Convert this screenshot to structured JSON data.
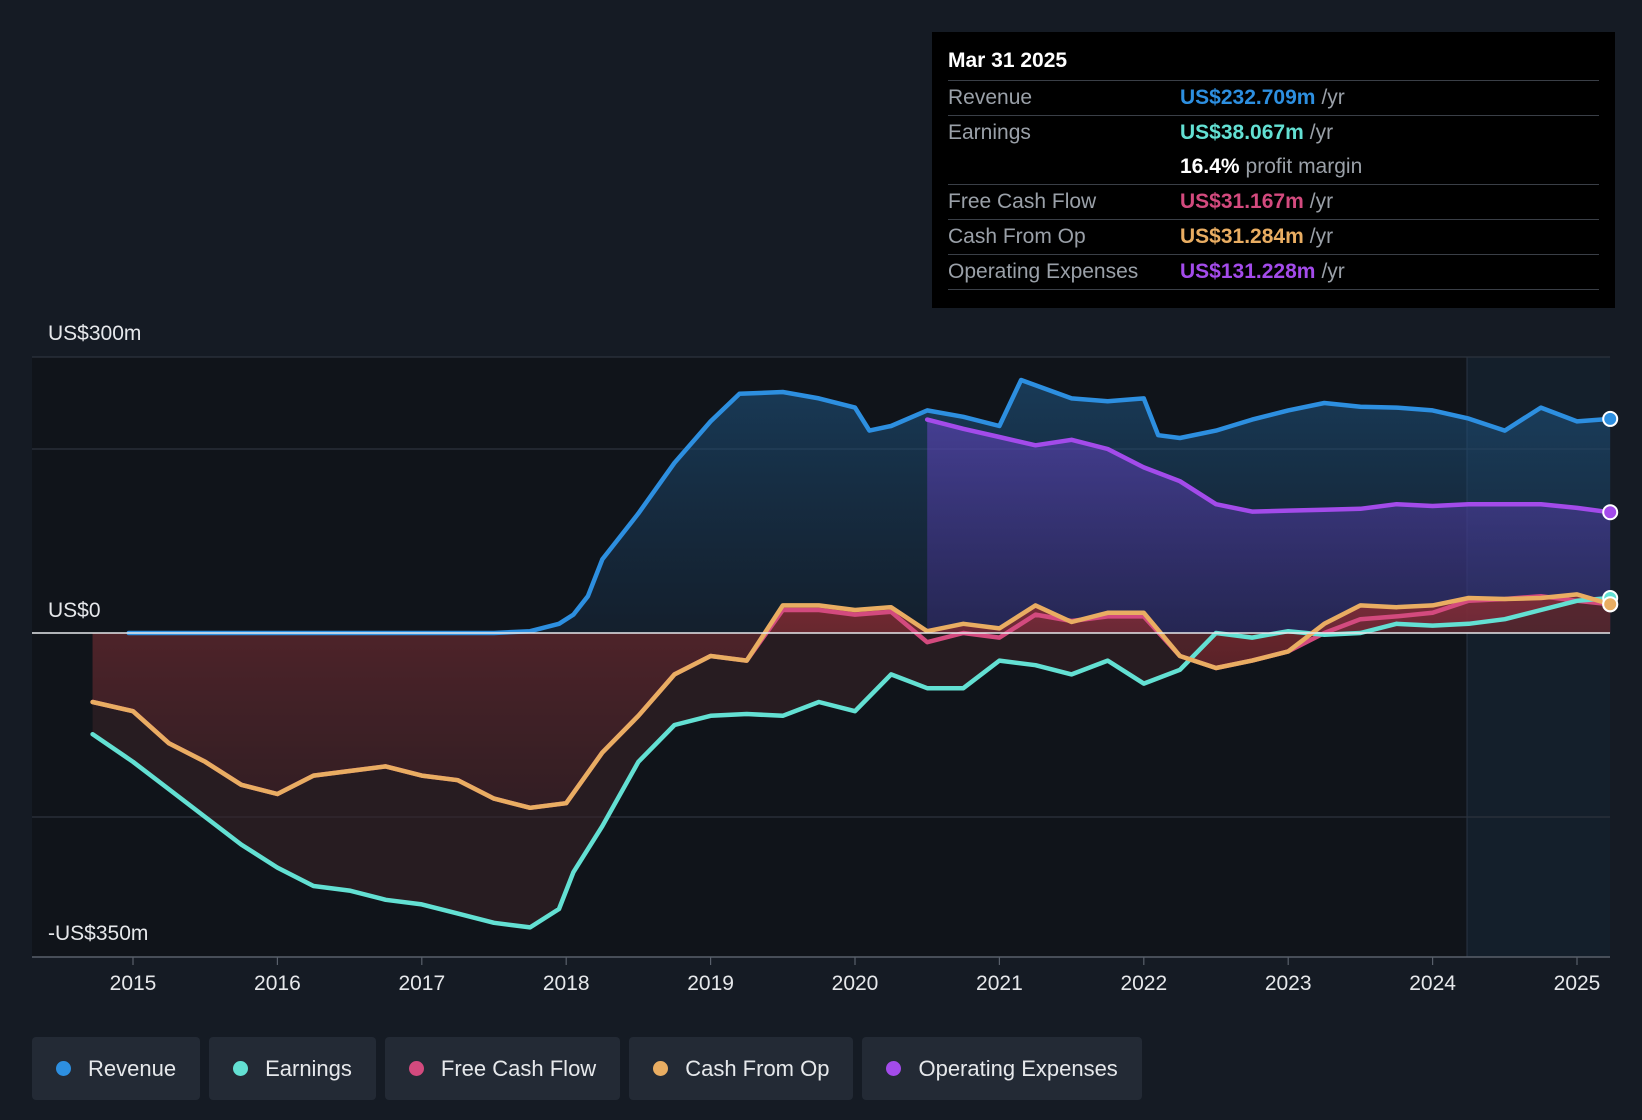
{
  "chart_data": {
    "type": "area",
    "y_top_label": "US$300m",
    "y_zero_label": "US$0",
    "y_bottom_label": "-US$350m",
    "ylim": [
      -350,
      300
    ],
    "x_ticks": [
      "2015",
      "2016",
      "2017",
      "2018",
      "2019",
      "2020",
      "2021",
      "2022",
      "2023",
      "2024",
      "2025"
    ],
    "xlim": [
      2014.3,
      2025.23
    ],
    "series": [
      {
        "name": "Revenue",
        "color": "#2d8fe0",
        "x": [
          2014.97,
          2015.5,
          2016,
          2016.5,
          2017,
          2017.5,
          2017.75,
          2017.95,
          2018.05,
          2018.15,
          2018.25,
          2018.5,
          2018.75,
          2019,
          2019.2,
          2019.5,
          2019.75,
          2020,
          2020.1,
          2020.25,
          2020.5,
          2020.75,
          2021,
          2021.15,
          2021.5,
          2021.75,
          2022,
          2022.1,
          2022.25,
          2022.5,
          2022.75,
          2023,
          2023.25,
          2023.5,
          2023.75,
          2024,
          2024.25,
          2024.5,
          2024.75,
          2025,
          2025.23
        ],
        "values": [
          0,
          0,
          0,
          0,
          0,
          0,
          2,
          10,
          20,
          40,
          80,
          130,
          185,
          230,
          260,
          262,
          255,
          245,
          220,
          225,
          242,
          235,
          225,
          275,
          255,
          252,
          255,
          215,
          212,
          220,
          232,
          242,
          250,
          246,
          245,
          242,
          233,
          220,
          245,
          230,
          232.709
        ]
      },
      {
        "name": "Operating Expenses",
        "color": "#a34bea",
        "x": [
          2020.5,
          2020.75,
          2021,
          2021.25,
          2021.5,
          2021.75,
          2022,
          2022.25,
          2022.5,
          2022.75,
          2023,
          2023.25,
          2023.5,
          2023.75,
          2024,
          2024.25,
          2024.5,
          2024.75,
          2025,
          2025.23
        ],
        "values": [
          232,
          222,
          213,
          204,
          210,
          200,
          180,
          165,
          140,
          132,
          133,
          134,
          135,
          140,
          138,
          140,
          140,
          140,
          136,
          131.228
        ]
      },
      {
        "name": "Earnings",
        "color": "#63e0d3",
        "x": [
          2014.72,
          2015,
          2015.25,
          2015.5,
          2015.75,
          2016,
          2016.25,
          2016.5,
          2016.75,
          2017,
          2017.25,
          2017.5,
          2017.75,
          2017.95,
          2018.05,
          2018.25,
          2018.5,
          2018.75,
          2019,
          2019.25,
          2019.5,
          2019.75,
          2020,
          2020.25,
          2020.5,
          2020.75,
          2021,
          2021.25,
          2021.5,
          2021.75,
          2022,
          2022.25,
          2022.5,
          2022.75,
          2023,
          2023.25,
          2023.5,
          2023.75,
          2024,
          2024.25,
          2024.5,
          2024.75,
          2025,
          2025.23
        ],
        "values": [
          -110,
          -140,
          -170,
          -200,
          -230,
          -255,
          -275,
          -280,
          -290,
          -295,
          -305,
          -315,
          -320,
          -300,
          -260,
          -210,
          -140,
          -100,
          -90,
          -88,
          -90,
          -75,
          -85,
          -45,
          -60,
          -60,
          -30,
          -35,
          -45,
          -30,
          -55,
          -40,
          0,
          -5,
          2,
          -2,
          0,
          10,
          8,
          10,
          15,
          25,
          35,
          38.067
        ]
      },
      {
        "name": "Free Cash Flow",
        "color": "#d34a7e",
        "x": [
          2014.72,
          2015,
          2015.25,
          2015.5,
          2015.75,
          2016,
          2016.25,
          2016.5,
          2016.75,
          2017,
          2017.25,
          2017.5,
          2017.75,
          2018,
          2018.25,
          2018.5,
          2018.75,
          2019,
          2019.25,
          2019.5,
          2019.75,
          2020,
          2020.25,
          2020.5,
          2020.75,
          2021,
          2021.25,
          2021.5,
          2021.75,
          2022,
          2022.25,
          2022.5,
          2022.75,
          2023,
          2023.25,
          2023.5,
          2023.75,
          2024,
          2024.25,
          2024.5,
          2024.75,
          2025,
          2025.23
        ],
        "values": [
          -75,
          -85,
          -120,
          -140,
          -165,
          -175,
          -155,
          -150,
          -145,
          -155,
          -160,
          -180,
          -190,
          -185,
          -130,
          -90,
          -45,
          -25,
          -30,
          25,
          25,
          20,
          23,
          -10,
          0,
          -5,
          20,
          13,
          18,
          18,
          -25,
          -38,
          -30,
          -20,
          0,
          15,
          18,
          22,
          35,
          37,
          40,
          35,
          31.167
        ]
      },
      {
        "name": "Cash From Op",
        "color": "#e9ad62",
        "x": [
          2014.72,
          2015,
          2015.25,
          2015.5,
          2015.75,
          2016,
          2016.25,
          2016.5,
          2016.75,
          2017,
          2017.25,
          2017.5,
          2017.75,
          2018,
          2018.25,
          2018.5,
          2018.75,
          2019,
          2019.25,
          2019.5,
          2019.75,
          2020,
          2020.25,
          2020.5,
          2020.75,
          2021,
          2021.25,
          2021.5,
          2021.75,
          2022,
          2022.25,
          2022.5,
          2022.75,
          2023,
          2023.25,
          2023.5,
          2023.75,
          2024,
          2024.25,
          2024.5,
          2024.75,
          2025,
          2025.23
        ],
        "values": [
          -75,
          -85,
          -120,
          -140,
          -165,
          -175,
          -155,
          -150,
          -145,
          -155,
          -160,
          -180,
          -190,
          -185,
          -130,
          -90,
          -45,
          -25,
          -30,
          30,
          30,
          25,
          28,
          2,
          10,
          5,
          30,
          12,
          22,
          22,
          -25,
          -38,
          -30,
          -20,
          10,
          30,
          28,
          30,
          38,
          37,
          38,
          42,
          31.284
        ]
      }
    ]
  },
  "tooltip": {
    "date": "Mar 31 2025",
    "rows": [
      {
        "label": "Revenue",
        "value": "US$232.709m",
        "unit": "/yr",
        "color": "#2d8fe0"
      },
      {
        "label": "Earnings",
        "value": "US$38.067m",
        "unit": "/yr",
        "color": "#63e0d3"
      },
      {
        "label": "",
        "value": "16.4%",
        "unit": "profit margin",
        "color": "#ffffff"
      },
      {
        "label": "Free Cash Flow",
        "value": "US$31.167m",
        "unit": "/yr",
        "color": "#d34a7e"
      },
      {
        "label": "Cash From Op",
        "value": "US$31.284m",
        "unit": "/yr",
        "color": "#e9ad62"
      },
      {
        "label": "Operating Expenses",
        "value": "US$131.228m",
        "unit": "/yr",
        "color": "#a34bea"
      }
    ]
  },
  "legend": [
    {
      "label": "Revenue",
      "color": "#2d8fe0"
    },
    {
      "label": "Earnings",
      "color": "#63e0d3"
    },
    {
      "label": "Free Cash Flow",
      "color": "#d34a7e"
    },
    {
      "label": "Cash From Op",
      "color": "#e9ad62"
    },
    {
      "label": "Operating Expenses",
      "color": "#a34bea"
    }
  ]
}
